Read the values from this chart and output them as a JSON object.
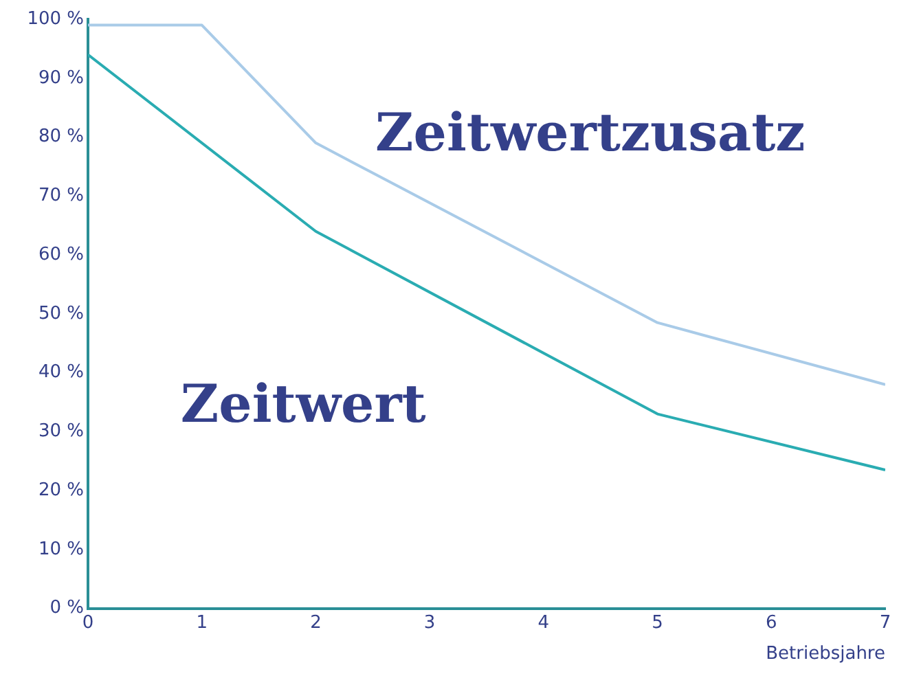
{
  "chart_data": {
    "type": "line",
    "xlabel": "Betriebsjahre",
    "series": [
      {
        "name": "Zeitwertzusatz",
        "color": "#a9cbe8",
        "x": [
          0,
          1,
          2,
          5,
          7
        ],
        "values": [
          99,
          99,
          79,
          48.5,
          38
        ]
      },
      {
        "name": "Zeitwert",
        "color": "#2aacb2",
        "x": [
          0,
          2,
          5,
          7
        ],
        "values": [
          94,
          64,
          33,
          23.5
        ]
      }
    ],
    "xlim": [
      0,
      7
    ],
    "xticks": [
      0,
      1,
      2,
      3,
      4,
      5,
      6,
      7
    ],
    "ylim": [
      0,
      100
    ],
    "yticks": [
      {
        "value": 0,
        "label": "0 %"
      },
      {
        "value": 10,
        "label": "10 %"
      },
      {
        "value": 20,
        "label": "20 %"
      },
      {
        "value": 30,
        "label": "30 %"
      },
      {
        "value": 40,
        "label": "40 %"
      },
      {
        "value": 50,
        "label": "50 %"
      },
      {
        "value": 60,
        "label": "60 %"
      },
      {
        "value": 70,
        "label": "70 %"
      },
      {
        "value": 80,
        "label": "80 %"
      },
      {
        "value": 90,
        "label": "90 %"
      },
      {
        "value": 100,
        "label": "100 %"
      }
    ],
    "grid": false,
    "legend": false,
    "marker": "none",
    "line_style": "solid"
  }
}
